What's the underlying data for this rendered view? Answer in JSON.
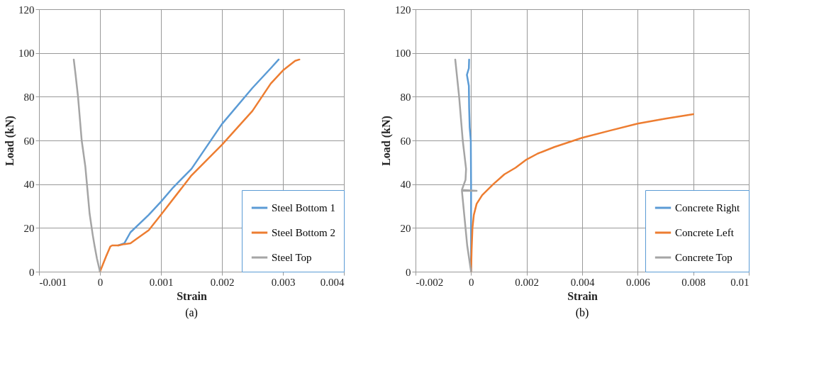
{
  "chart_data": [
    {
      "type": "line",
      "xlabel": "Strain",
      "ylabel": "Load (kN)",
      "annotations": [
        "(a)"
      ],
      "xlim": [
        -0.001,
        0.004
      ],
      "ylim": [
        0,
        120
      ],
      "xticks": [
        -0.001,
        0,
        0.001,
        0.002,
        0.003,
        0.004
      ],
      "yticks": [
        0,
        20,
        40,
        60,
        80,
        100,
        120
      ],
      "grid": true,
      "legend": "bottom right",
      "marker": "none",
      "line_style": "solid",
      "series": [
        {
          "name": "Steel Bottom 1",
          "color": "#5b9bd5",
          "x": [
            0.0003,
            0.0004,
            0.0005,
            0.0008,
            0.001,
            0.0012,
            0.0015,
            0.002,
            0.0025,
            0.0028,
            0.00293
          ],
          "values": [
            12,
            13,
            18,
            26,
            32,
            38.5,
            47,
            67.5,
            84,
            93,
            97
          ]
        },
        {
          "name": "Steel Bottom 2",
          "color": "#ed7d31",
          "x": [
            0,
            0.0001,
            0.00017,
            0.0002,
            0.0003,
            0.0004,
            0.0005,
            0.0006,
            0.0008,
            0.001,
            0.0015,
            0.002,
            0.0025,
            0.0028,
            0.003,
            0.0032,
            0.00327
          ],
          "values": [
            0,
            7,
            11.5,
            12,
            12,
            12.6,
            13,
            15,
            19,
            26,
            44,
            58,
            73.5,
            86,
            92,
            96.4,
            97
          ]
        },
        {
          "name": "Steel Top",
          "color": "#a5a5a5",
          "x": [
            0,
            -5e-05,
            -9e-05,
            -0.00012,
            -0.00017,
            -0.00024,
            -0.0003,
            -0.00036,
            -0.0004,
            -0.00043
          ],
          "values": [
            0,
            6,
            12,
            17,
            26.5,
            48,
            60,
            80,
            90,
            97
          ]
        }
      ]
    },
    {
      "type": "line",
      "xlabel": "Strain",
      "ylabel": "Load (kN)",
      "annotations": [
        "(b)"
      ],
      "xlim": [
        -0.002,
        0.01
      ],
      "ylim": [
        0,
        120
      ],
      "xticks": [
        -0.002,
        0,
        0.002,
        0.004,
        0.006,
        0.008,
        0.01
      ],
      "yticks": [
        0,
        20,
        40,
        60,
        80,
        100,
        120
      ],
      "grid": true,
      "legend": "bottom right",
      "marker": "none",
      "line_style": "solid",
      "series": [
        {
          "name": "Concrete Right",
          "color": "#5b9bd5",
          "x": [
            0,
            0,
            -1e-05,
            -5e-05,
            -7e-05,
            -8e-05,
            -0.00015,
            -8e-05,
            -7e-05
          ],
          "values": [
            0,
            40,
            60,
            66,
            75,
            85,
            90,
            93,
            97
          ]
        },
        {
          "name": "Concrete Left",
          "color": "#ed7d31",
          "x": [
            0,
            2e-05,
            5e-05,
            0.0001,
            0.0002,
            0.0004,
            0.0008,
            0.0012,
            0.0016,
            0.002,
            0.0024,
            0.003,
            0.004,
            0.005,
            0.006,
            0.007,
            0.008
          ],
          "values": [
            0,
            10,
            20,
            26,
            31,
            35,
            40,
            44.5,
            47.5,
            51.3,
            54,
            57,
            61.2,
            64.5,
            67.7,
            70,
            72
          ]
        },
        {
          "name": "Concrete Top",
          "color": "#a5a5a5",
          "x": [
            0,
            -0.00014,
            -0.0002,
            -0.00033,
            0.0002,
            -0.00033,
            -0.0002,
            -0.00018,
            -0.0003,
            -0.00043,
            -0.00057
          ],
          "values": [
            0,
            12,
            20,
            37,
            37,
            37.4,
            42,
            47,
            60,
            80,
            97
          ]
        }
      ]
    }
  ]
}
